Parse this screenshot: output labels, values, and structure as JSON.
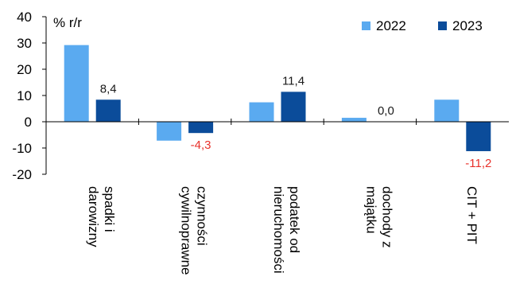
{
  "chart_data": {
    "type": "bar",
    "ylabel": "% r/r",
    "ylim": [
      -20,
      40
    ],
    "yticks": [
      40,
      30,
      20,
      10,
      0,
      -10,
      -20
    ],
    "grid": false,
    "legend_position": "top-right",
    "categories": [
      [
        "spadki i",
        "darowizny"
      ],
      [
        "czynności",
        "cywilnoprawne"
      ],
      [
        "podatek od",
        "nieruchomości"
      ],
      [
        "dochody z",
        "majątku"
      ],
      [
        "CIT + PIT"
      ]
    ],
    "series": [
      {
        "name": "2022",
        "color": "#5aaaf0",
        "values": [
          29.2,
          -7.2,
          7.4,
          1.5,
          8.4
        ]
      },
      {
        "name": "2023",
        "color": "#0b4c9a",
        "values": [
          8.4,
          -4.3,
          11.4,
          0.0,
          -11.2
        ]
      }
    ],
    "data_labels": {
      "series": "2023",
      "texts": [
        "8,4",
        "-4,3",
        "11,4",
        "0,0",
        "-11,2"
      ],
      "positive_color": "#1a1a1a",
      "negative_color": "#e8312b"
    }
  }
}
